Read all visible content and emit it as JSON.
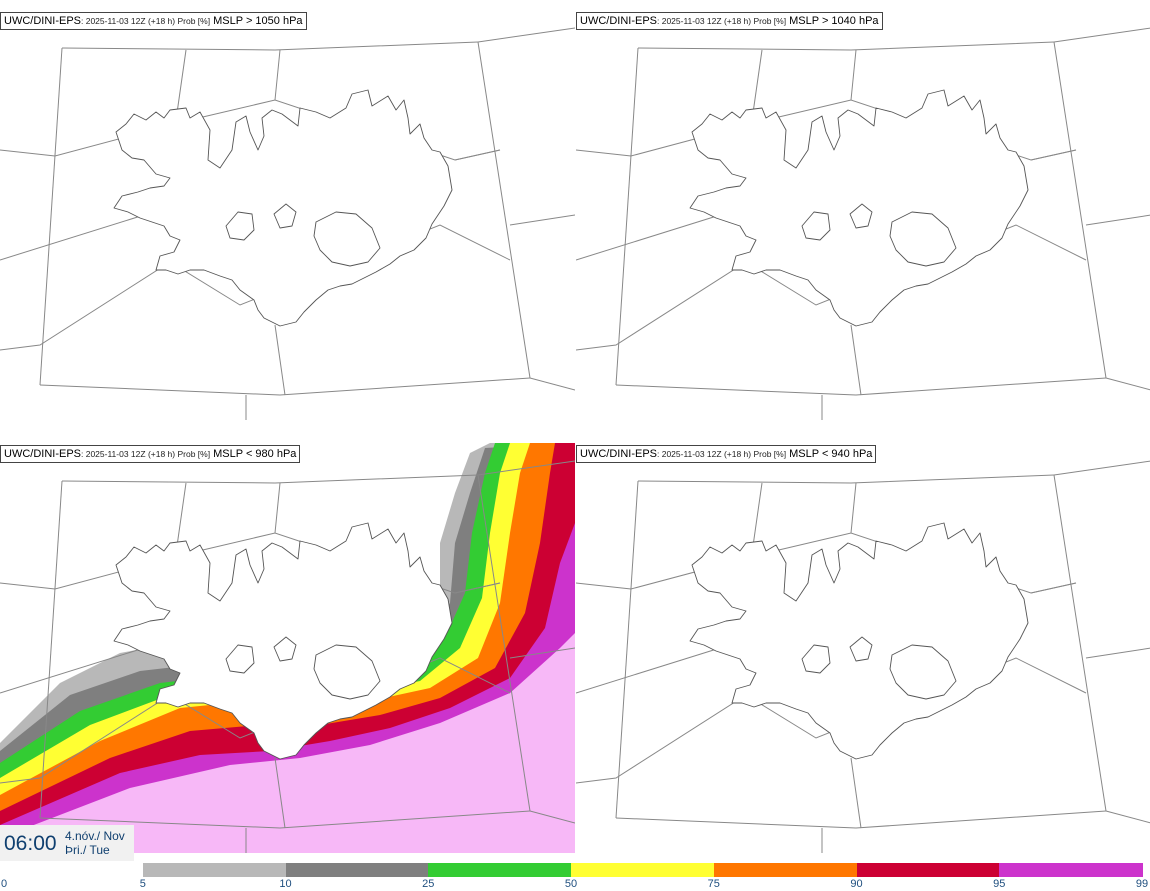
{
  "panels": [
    {
      "model": "UWC/DINI-EPS",
      "meta": ": 2025-11-03 12Z (+18 h) Prob [%]",
      "param": "MSLP > 1050 hPa"
    },
    {
      "model": "UWC/DINI-EPS",
      "meta": ": 2025-11-03 12Z (+18 h) Prob [%]",
      "param": "MSLP > 1040 hPa"
    },
    {
      "model": "UWC/DINI-EPS",
      "meta": ": 2025-11-03 12Z (+18 h) Prob [%]",
      "param": "MSLP < 980 hPa"
    },
    {
      "model": "UWC/DINI-EPS",
      "meta": ": 2025-11-03 12Z (+18 h) Prob [%]",
      "param": "MSLP < 940 hPa"
    }
  ],
  "valid_time": {
    "time": "06:00",
    "date_line1": "4.nóv./ Nov",
    "date_line2": "Þri./ Tue"
  },
  "colorbar": {
    "thresholds": [
      "0",
      "5",
      "10",
      "25",
      "50",
      "75",
      "90",
      "95",
      "99"
    ],
    "colors": [
      "#ffffff",
      "#b8b8b8",
      "#7f7f7f",
      "#33cc33",
      "#ffff33",
      "#ff7700",
      "#cc0033",
      "#cc33cc",
      "#f7b8f7"
    ]
  },
  "map_features": [
    "graticule-lines",
    "iceland-coastline",
    "probability-shading"
  ]
}
